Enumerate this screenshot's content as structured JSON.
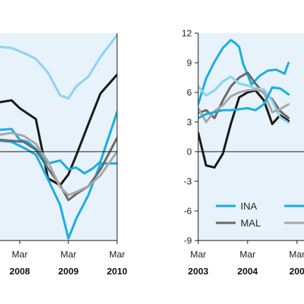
{
  "colors": {
    "panel_bg": "#e7f2fa",
    "axis": "#111111",
    "black_line": "#1a1a1a",
    "bright_blue": "#1aaee0",
    "light_blue": "#8dd3f0",
    "dark_gray": "#6a6a6a",
    "light_gray": "#a8a8a8"
  },
  "chart_data": [
    {
      "type": "line",
      "title": "",
      "xlabel": "",
      "ylabel": "",
      "x_ticks": [
        {
          "month": "Mar",
          "year": "2008",
          "t": 2008.17
        },
        {
          "month": "Mar",
          "year": "2009",
          "t": 2009.17
        },
        {
          "month": "Mar",
          "year": "2010",
          "t": 2010.17
        }
      ],
      "xlim": [
        2007.0,
        2010.17
      ],
      "ylim": [
        -9,
        12
      ],
      "y_ticks": [],
      "series": [
        {
          "color": "light_blue",
          "x": [
            2007.0,
            2008.0,
            2008.25,
            2008.5,
            2008.75,
            2009.0,
            2009.17,
            2009.33,
            2009.58,
            2009.83,
            2010.17
          ],
          "values": [
            11.0,
            10.5,
            10.0,
            9.4,
            8.0,
            5.7,
            5.4,
            6.6,
            7.6,
            9.6,
            11.8
          ]
        },
        {
          "color": "black_line",
          "x": [
            2007.0,
            2007.5,
            2008.0,
            2008.17,
            2008.5,
            2008.75,
            2009.0,
            2009.17,
            2009.33,
            2009.58,
            2009.83,
            2010.17
          ],
          "values": [
            4.5,
            4.8,
            5.2,
            4.4,
            3.3,
            -2.7,
            -3.4,
            -2.3,
            -0.4,
            2.8,
            5.9,
            7.8
          ]
        },
        {
          "color": "bright_blue",
          "x": [
            2007.0,
            2007.5,
            2007.75,
            2008.0,
            2008.17,
            2008.33,
            2008.5,
            2008.75,
            2009.0,
            2009.17,
            2009.33,
            2009.5,
            2009.67,
            2009.83,
            2010.17
          ],
          "values": [
            2.4,
            2.4,
            2.2,
            2.3,
            1.2,
            1.0,
            0.3,
            -1.2,
            -0.9,
            -1.8,
            -1.6,
            -2.2,
            -1.7,
            -1.0,
            4.0
          ]
        },
        {
          "color": "bright_blue",
          "x": [
            2007.0,
            2007.5,
            2007.75,
            2008.0,
            2008.25,
            2008.5,
            2008.75,
            2009.0,
            2009.17,
            2009.33,
            2009.58,
            2009.83,
            2010.17
          ],
          "values": [
            1.3,
            1.3,
            1.1,
            1.0,
            0.4,
            -0.3,
            -2.8,
            -5.4,
            -8.8,
            -6.8,
            -4.4,
            -1.2,
            -1.2
          ]
        },
        {
          "color": "dark_gray",
          "x": [
            2007.0,
            2007.5,
            2007.75,
            2008.0,
            2008.25,
            2008.5,
            2008.75,
            2009.0,
            2009.17,
            2009.33,
            2009.58,
            2009.83,
            2010.17
          ],
          "values": [
            1.4,
            1.4,
            1.2,
            1.1,
            1.0,
            0.2,
            -1.7,
            -3.4,
            -4.9,
            -4.3,
            -3.5,
            -1.8,
            1.4
          ]
        },
        {
          "color": "light_gray",
          "x": [
            2007.0,
            2007.5,
            2007.75,
            2008.0,
            2008.25,
            2008.5,
            2008.75,
            2009.0,
            2009.17,
            2009.33,
            2009.58,
            2009.83,
            2010.17
          ],
          "values": [
            1.8,
            1.8,
            1.7,
            1.9,
            1.6,
            0.8,
            -1.0,
            -3.6,
            -4.4,
            -4.1,
            -3.5,
            -2.4,
            0.0
          ]
        }
      ]
    },
    {
      "type": "line",
      "title": "",
      "xlabel": "",
      "ylabel": "",
      "ylim": [
        -9,
        12
      ],
      "xlim": [
        2003.17,
        2005.0
      ],
      "y_ticks": [
        "12",
        "9",
        "6",
        "3",
        "0",
        "-3",
        "-6",
        "-9"
      ],
      "y_tick_values": [
        12,
        9,
        6,
        3,
        0,
        -3,
        -6,
        -9
      ],
      "x_ticks": [
        {
          "month": "Mar",
          "year": "2003",
          "t": 2003.17
        },
        {
          "month": "Mar",
          "year": "2004",
          "t": 2004.17
        },
        {
          "month": "Mar",
          "year": "200",
          "t": 2005.17
        }
      ],
      "legend": [
        "INA",
        "MAL"
      ],
      "legend_position": "bottom-right",
      "series": [
        {
          "name": "INA",
          "color": "bright_blue",
          "x": [
            2003.17,
            2003.33,
            2003.5,
            2003.67,
            2003.83,
            2003.92,
            2004.0,
            2004.08,
            2004.25,
            2004.42,
            2004.58,
            2004.75,
            2004.92,
            2005.0
          ],
          "values": [
            4.8,
            7.4,
            9.1,
            10.5,
            11.3,
            11.0,
            10.6,
            8.9,
            6.8,
            7.7,
            8.2,
            8.3,
            7.9,
            9.0
          ]
        },
        {
          "name": "MAL",
          "color": "dark_gray",
          "x": [
            2003.17,
            2003.33,
            2003.5,
            2003.67,
            2003.83,
            2004.0,
            2004.17,
            2004.33,
            2004.5,
            2004.67,
            2004.83,
            2005.0
          ],
          "values": [
            3.9,
            4.2,
            3.4,
            5.2,
            6.6,
            7.5,
            8.0,
            6.9,
            5.9,
            5.3,
            4.1,
            3.4
          ]
        },
        {
          "color": "black_line",
          "x": [
            2003.17,
            2003.33,
            2003.5,
            2003.67,
            2003.83,
            2004.0,
            2004.17,
            2004.33,
            2004.5,
            2004.67,
            2004.83,
            2005.0
          ],
          "values": [
            1.9,
            -1.4,
            -1.6,
            -0.2,
            2.8,
            5.5,
            6.0,
            6.2,
            5.2,
            2.8,
            3.7,
            3.1
          ]
        },
        {
          "color": "light_blue",
          "x": [
            2003.17,
            2003.33,
            2003.5,
            2003.67,
            2003.83,
            2004.0,
            2004.17,
            2004.33,
            2004.5,
            2004.67,
            2004.83,
            2005.0
          ],
          "values": [
            6.6,
            5.7,
            6.2,
            7.1,
            7.6,
            6.9,
            6.7,
            6.4,
            6.3,
            5.1,
            3.5,
            2.9
          ]
        },
        {
          "color": "light_gray",
          "x": [
            2003.17,
            2003.33,
            2003.5,
            2003.67,
            2003.83,
            2004.0,
            2004.17,
            2004.33,
            2004.5,
            2004.67,
            2004.83,
            2005.0
          ],
          "values": [
            4.4,
            3.0,
            4.1,
            4.7,
            5.6,
            6.0,
            6.2,
            6.3,
            6.0,
            4.0,
            4.3,
            4.8
          ]
        },
        {
          "color": "bright_blue",
          "x": [
            2003.17,
            2003.33,
            2003.5,
            2003.67,
            2003.83,
            2004.0,
            2004.17,
            2004.33,
            2004.5,
            2004.67,
            2004.83,
            2005.0
          ],
          "values": [
            3.4,
            3.8,
            4.0,
            4.2,
            4.2,
            4.3,
            4.4,
            4.2,
            4.8,
            6.5,
            6.4,
            5.8
          ]
        }
      ]
    }
  ]
}
